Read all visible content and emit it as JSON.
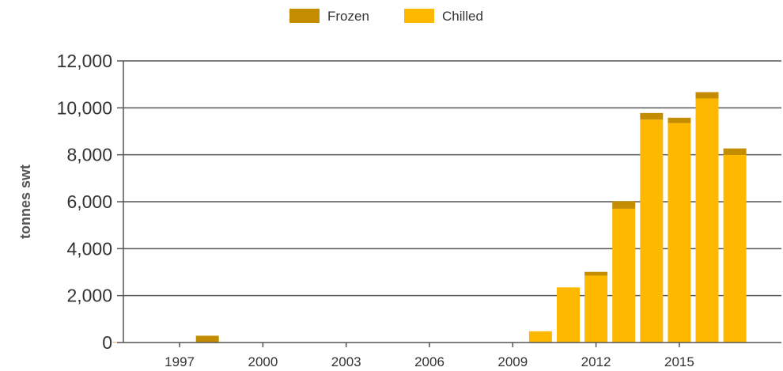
{
  "chart_data": {
    "type": "bar",
    "stacked": true,
    "title": "",
    "xlabel": "",
    "ylabel": "tonnes swt",
    "ylim": [
      0,
      12000
    ],
    "y_ticks": [
      "0",
      "2,000",
      "4,000",
      "6,000",
      "8,000",
      "10,000",
      "12,000"
    ],
    "y_tick_values": [
      0,
      2000,
      4000,
      6000,
      8000,
      10000,
      12000
    ],
    "x_ticks": [
      "1997",
      "2000",
      "2003",
      "2006",
      "2009",
      "2012",
      "2015"
    ],
    "categories": [
      1995,
      1996,
      1997,
      1998,
      1999,
      2000,
      2001,
      2002,
      2003,
      2004,
      2005,
      2006,
      2007,
      2008,
      2009,
      2010,
      2011,
      2012,
      2013,
      2014,
      2015,
      2016,
      2017
    ],
    "series": [
      {
        "name": "Chilled",
        "color": "#FFB800",
        "values": [
          0,
          0,
          0,
          0,
          0,
          0,
          0,
          0,
          0,
          0,
          0,
          0,
          0,
          0,
          0,
          480,
          2350,
          2850,
          5700,
          9500,
          9350,
          10400,
          8000
        ]
      },
      {
        "name": "Frozen",
        "color": "#C48C00",
        "values": [
          20,
          0,
          0,
          290,
          0,
          0,
          0,
          0,
          0,
          0,
          0,
          0,
          0,
          0,
          0,
          0,
          0,
          160,
          320,
          280,
          230,
          270,
          270
        ]
      }
    ],
    "legend": {
      "position": "top-center",
      "order": [
        "Frozen",
        "Chilled"
      ]
    },
    "grid": true
  }
}
